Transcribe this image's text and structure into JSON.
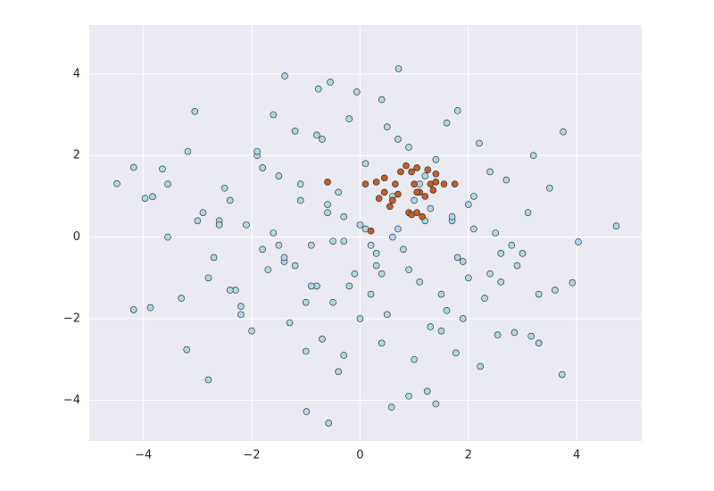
{
  "chart_data": {
    "type": "scatter",
    "xlim": [
      -5,
      5.2
    ],
    "ylim": [
      -5,
      5.2
    ],
    "xticks": [
      {
        "value": -4,
        "label": "−4"
      },
      {
        "value": -2,
        "label": "−2"
      },
      0,
      2,
      4
    ],
    "yticks": [
      {
        "value": -4,
        "label": "−4"
      },
      {
        "value": -2,
        "label": "−2"
      },
      0,
      2,
      4
    ],
    "grid": true,
    "series": [
      {
        "color": "#add8e6",
        "x": [
          -4.49,
          -4.18,
          -4.18,
          -3.87,
          -3.97,
          -3.83,
          -3.65,
          -3.55,
          -3.55,
          -3.05,
          -3.18,
          -3.2,
          -1.39,
          -0.77,
          -0.55,
          0.71,
          0.4,
          -0.06,
          3.75,
          4.73,
          4.03,
          3.92,
          3.73,
          -0.99,
          -0.58,
          0.58,
          1.24,
          1.4,
          1.77,
          2.22,
          3.16,
          2.85,
          2.54,
          -2.9,
          -2.7,
          -2.5,
          -2.3,
          -2.1,
          -1.9,
          -1.7,
          -1.5,
          -1.3,
          -1.1,
          -0.9,
          -0.7,
          -0.5,
          -0.3,
          -0.1,
          0.1,
          0.3,
          0.5,
          0.7,
          0.9,
          1.1,
          1.3,
          1.5,
          1.7,
          1.9,
          2.1,
          2.3,
          2.5,
          2.7,
          2.9,
          3.1,
          3.3,
          3.5,
          -2.8,
          -2.4,
          -2.0,
          -1.6,
          -1.2,
          -0.8,
          -0.4,
          0.0,
          0.4,
          0.8,
          1.2,
          1.6,
          2.0,
          2.4,
          2.8,
          3.2,
          -2.6,
          -2.2,
          -1.8,
          -1.4,
          -1.0,
          -0.6,
          -0.2,
          0.2,
          0.6,
          1.0,
          1.4,
          1.8,
          2.2,
          2.6,
          3.0,
          -1.5,
          -1.1,
          -0.7,
          -0.3,
          0.1,
          0.5,
          0.9,
          1.3,
          1.7,
          2.1,
          -1.8,
          -1.2,
          -0.6,
          0.0,
          0.6,
          1.2,
          1.8,
          -2.2,
          -1.4,
          -0.4,
          0.3,
          1.0,
          1.6,
          2.4,
          -0.9,
          -0.2,
          0.4,
          1.1,
          -1.6,
          -0.5,
          0.7,
          1.9,
          -2.4,
          -2.8,
          2.6,
          3.3,
          -3.3,
          -3.0,
          3.6,
          -0.8,
          0.2,
          1.5,
          -1.9,
          2.0,
          -2.6,
          -1.0,
          0.9,
          -0.3
        ],
        "y": [
          1.31,
          1.71,
          -1.78,
          -1.73,
          0.95,
          0.99,
          1.67,
          1.3,
          0.0,
          3.08,
          2.1,
          -2.76,
          3.95,
          3.63,
          3.8,
          4.13,
          3.37,
          3.56,
          2.58,
          0.27,
          -0.12,
          -1.12,
          -3.37,
          -4.28,
          -4.56,
          -4.17,
          -3.78,
          -4.09,
          -2.84,
          -3.17,
          -2.43,
          -2.34,
          -2.4,
          0.6,
          -0.5,
          1.2,
          -1.3,
          0.3,
          2.0,
          -0.8,
          1.5,
          -2.1,
          0.9,
          -0.2,
          2.4,
          -1.6,
          0.5,
          -0.9,
          1.8,
          -0.4,
          -1.9,
          0.2,
          2.2,
          -1.1,
          0.7,
          -2.3,
          0.4,
          -0.6,
          1.0,
          -1.5,
          0.1,
          1.4,
          -0.7,
          0.6,
          -1.4,
          1.2,
          -1.0,
          0.9,
          -2.3,
          0.1,
          2.6,
          -1.2,
          1.1,
          0.3,
          -2.6,
          -0.3,
          1.5,
          -1.8,
          0.8,
          -0.9,
          -0.2,
          2.0,
          0.4,
          -1.7,
          1.7,
          -0.6,
          -2.8,
          0.6,
          2.9,
          -1.4,
          0.0,
          -3.0,
          1.9,
          -0.5,
          2.3,
          -1.1,
          -0.4,
          -0.2,
          1.3,
          -2.5,
          -0.1,
          0.2,
          2.7,
          -0.8,
          -2.2,
          0.5,
          0.2,
          -0.3,
          -0.7,
          0.8,
          -2.0,
          1.0,
          0.4,
          3.1,
          -1.9,
          -0.5,
          -3.3,
          -0.7,
          0.9,
          2.8,
          1.6,
          -1.2,
          -1.2,
          -0.9,
          1.3,
          3.0,
          -0.1,
          2.4,
          -2.0,
          -1.3,
          -3.5,
          -0.4,
          -2.6,
          -1.5,
          0.4,
          -1.3,
          2.5,
          -0.2,
          -1.4,
          2.1,
          -1.0,
          0.3,
          -1.6,
          -3.9,
          -2.9
        ]
      },
      {
        "color": "#c0602a",
        "x": [
          0.3,
          0.1,
          -0.6,
          0.2,
          0.45,
          0.6,
          0.55,
          0.65,
          0.75,
          0.85,
          0.95,
          1.05,
          0.9,
          0.95,
          1.05,
          1.15,
          1.1,
          1.2,
          1.3,
          1.35,
          1.4,
          1.55,
          1.75,
          0.45,
          1.0,
          1.25,
          1.05,
          0.35,
          0.7,
          1.4
        ],
        "y": [
          1.35,
          1.3,
          1.35,
          0.15,
          1.1,
          0.9,
          0.75,
          1.3,
          1.6,
          1.75,
          1.6,
          1.7,
          0.6,
          0.55,
          0.6,
          0.5,
          1.1,
          1.0,
          1.3,
          1.15,
          1.55,
          1.3,
          1.3,
          1.45,
          1.3,
          1.65,
          1.1,
          0.95,
          1.05,
          1.35
        ]
      }
    ]
  }
}
